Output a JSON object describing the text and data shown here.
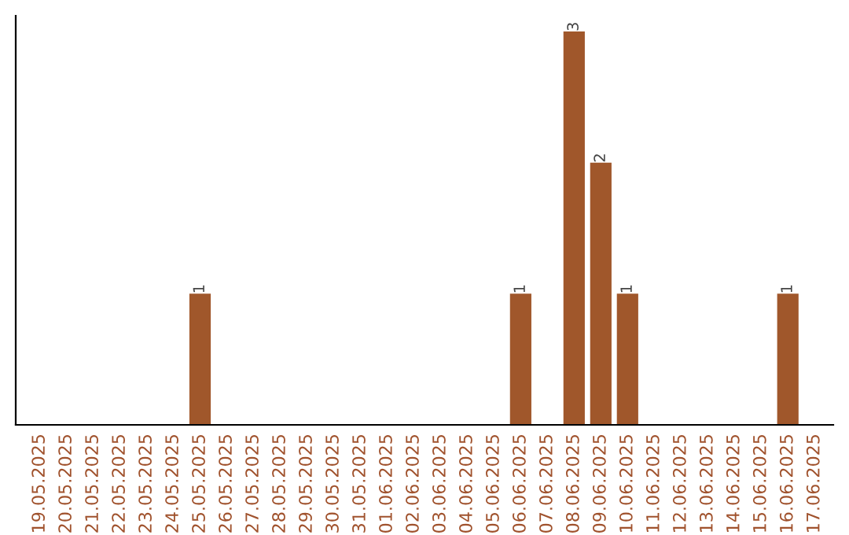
{
  "chart_data": {
    "type": "bar",
    "categories": [
      "19.05.2025",
      "20.05.2025",
      "21.05.2025",
      "22.05.2025",
      "23.05.2025",
      "24.05.2025",
      "25.05.2025",
      "26.05.2025",
      "27.05.2025",
      "28.05.2025",
      "29.05.2025",
      "30.05.2025",
      "31.05.2025",
      "01.06.2025",
      "02.06.2025",
      "03.06.2025",
      "04.06.2025",
      "05.06.2025",
      "06.06.2025",
      "07.06.2025",
      "08.06.2025",
      "09.06.2025",
      "10.06.2025",
      "11.06.2025",
      "12.06.2025",
      "13.06.2025",
      "14.06.2025",
      "15.06.2025",
      "16.06.2025",
      "17.06.2025"
    ],
    "values": [
      0,
      0,
      0,
      0,
      0,
      0,
      1,
      0,
      0,
      0,
      0,
      0,
      0,
      0,
      0,
      0,
      0,
      0,
      1,
      0,
      3,
      2,
      1,
      0,
      0,
      0,
      0,
      0,
      1,
      0
    ],
    "value_labels": [
      null,
      null,
      null,
      null,
      null,
      null,
      "1",
      null,
      null,
      null,
      null,
      null,
      null,
      null,
      null,
      null,
      null,
      null,
      "1",
      null,
      "3",
      "2",
      "1",
      null,
      null,
      null,
      null,
      null,
      "1",
      null
    ],
    "color": "#a0572b",
    "grid": false,
    "legend": false,
    "tick_labels": "x"
  }
}
